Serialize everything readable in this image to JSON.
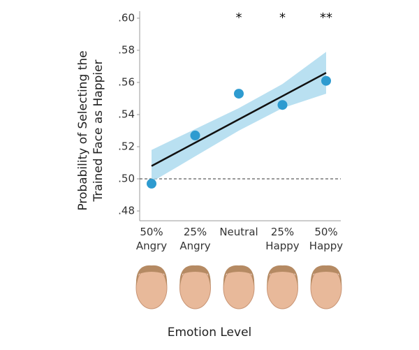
{
  "chart_data": {
    "type": "scatter",
    "y_label": "Probability of Selecting the\nTrained Face as Happier",
    "x_label": "Emotion Level",
    "categories": [
      "50%\nAngry",
      "25%\nAngry",
      "Neutral",
      "25%\nHappy",
      "50%\nHappy"
    ],
    "values": [
      0.497,
      0.527,
      0.553,
      0.546,
      0.561
    ],
    "color": "#2e9bd0",
    "fit_values": [
      0.508,
      0.5225,
      0.537,
      0.5515,
      0.566
    ],
    "fit_color": "#111111",
    "band_lower": [
      0.498,
      0.514,
      0.53,
      0.544,
      0.553
    ],
    "band_upper": [
      0.518,
      0.531,
      0.544,
      0.559,
      0.579
    ],
    "band_color": "#a8d8ee",
    "reference_line": 0.5,
    "ylim": [
      0.47,
      0.605
    ],
    "yticks": [
      {
        "value": 0.48,
        "label": ".48"
      },
      {
        "value": 0.5,
        "label": ".50"
      },
      {
        "value": 0.52,
        "label": ".52"
      },
      {
        "value": 0.54,
        "label": ".54"
      },
      {
        "value": 0.56,
        "label": ".56"
      },
      {
        "value": 0.58,
        "label": ".58"
      },
      {
        "value": 0.6,
        "label": ".60"
      }
    ],
    "annotations": [
      {
        "x": 2,
        "text": "*"
      },
      {
        "x": 3,
        "text": "*"
      },
      {
        "x": 4,
        "text": "**"
      }
    ]
  }
}
